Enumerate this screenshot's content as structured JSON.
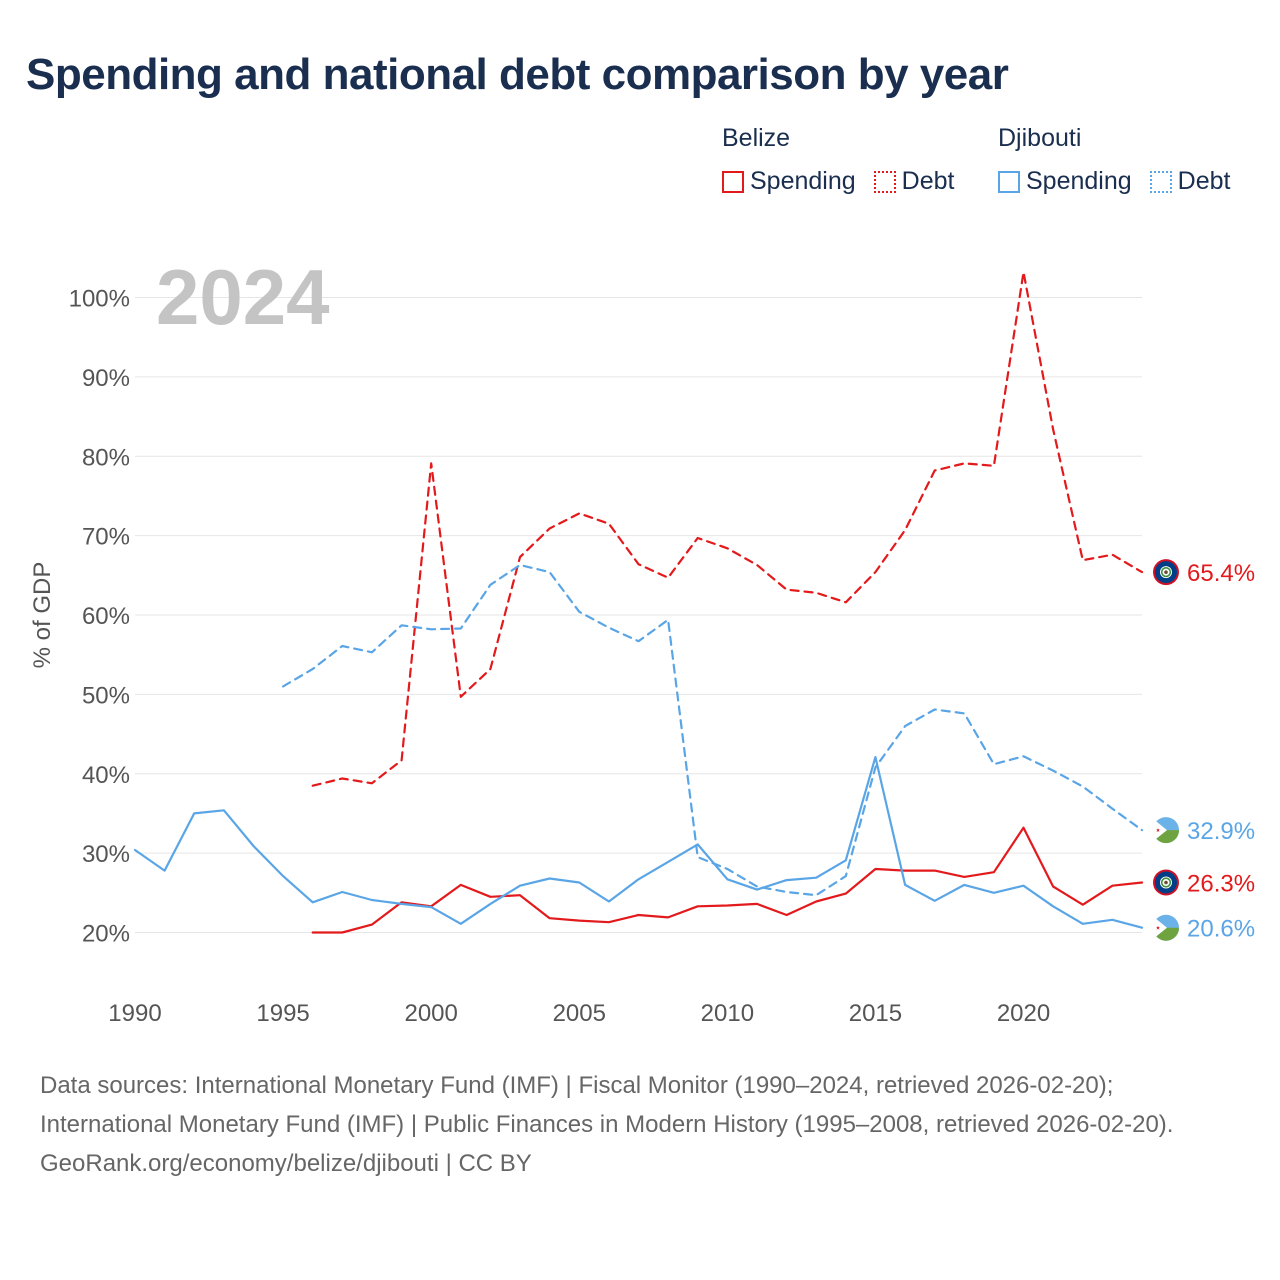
{
  "title": "Spending and national debt comparison by year",
  "legend": {
    "groups": [
      {
        "name": "Belize",
        "color": "#e31a1c",
        "spending_label": "Spending",
        "debt_label": "Debt"
      },
      {
        "name": "Djibouti",
        "color": "#5aa5e6",
        "spending_label": "Spending",
        "debt_label": "Debt"
      }
    ]
  },
  "year_watermark": "2024",
  "chart_data": {
    "type": "line",
    "ylabel": "% of GDP",
    "xlim": [
      1990,
      2024
    ],
    "ylim": [
      15,
      105
    ],
    "x_ticks": [
      1990,
      1995,
      2000,
      2005,
      2010,
      2015,
      2020
    ],
    "y_ticks": [
      20,
      30,
      40,
      50,
      60,
      70,
      80,
      90,
      100
    ],
    "y_tick_labels": [
      "20%",
      "30%",
      "40%",
      "50%",
      "60%",
      "70%",
      "80%",
      "90%",
      "100%"
    ],
    "series": [
      {
        "name": "Belize Debt",
        "country": "Belize",
        "metric": "Debt",
        "color": "#e31a1c",
        "style": "dashed",
        "x": [
          1996,
          1997,
          1998,
          1999,
          2000,
          2001,
          2002,
          2003,
          2004,
          2005,
          2006,
          2007,
          2008,
          2009,
          2010,
          2011,
          2012,
          2013,
          2014,
          2015,
          2016,
          2017,
          2018,
          2019,
          2020,
          2021,
          2022,
          2023,
          2024
        ],
        "values": [
          38.5,
          39.4,
          38.8,
          41.7,
          79.1,
          49.7,
          53.2,
          67.3,
          70.9,
          72.8,
          71.5,
          66.4,
          64.7,
          69.7,
          68.4,
          66.3,
          63.2,
          62.8,
          61.6,
          65.4,
          70.7,
          78.2,
          79.1,
          78.8,
          103.2,
          83.4,
          66.9,
          67.6,
          65.4
        ],
        "end_label": "65.4%"
      },
      {
        "name": "Belize Spending",
        "country": "Belize",
        "metric": "Spending",
        "color": "#e31a1c",
        "style": "solid",
        "x": [
          1996,
          1997,
          1998,
          1999,
          2000,
          2001,
          2002,
          2003,
          2004,
          2005,
          2006,
          2007,
          2008,
          2009,
          2010,
          2011,
          2012,
          2013,
          2014,
          2015,
          2016,
          2017,
          2018,
          2019,
          2020,
          2021,
          2022,
          2023,
          2024
        ],
        "values": [
          20.0,
          20.0,
          21.0,
          23.8,
          23.3,
          26.0,
          24.5,
          24.7,
          21.8,
          21.5,
          21.3,
          22.2,
          21.9,
          23.3,
          23.4,
          23.6,
          22.2,
          23.9,
          24.9,
          28.0,
          27.8,
          27.8,
          27.0,
          27.6,
          33.2,
          25.8,
          23.5,
          25.9,
          26.3
        ],
        "end_label": "26.3%"
      },
      {
        "name": "Djibouti Debt",
        "country": "Djibouti",
        "metric": "Debt",
        "color": "#5aa5e6",
        "style": "dashed",
        "x": [
          1995,
          1996,
          1997,
          1998,
          1999,
          2000,
          2001,
          2002,
          2003,
          2004,
          2005,
          2006,
          2007,
          2008,
          2009,
          2010,
          2011,
          2012,
          2013,
          2014,
          2015,
          2016,
          2017,
          2018,
          2019,
          2020,
          2021,
          2022,
          2023,
          2024
        ],
        "values": [
          51.0,
          53.2,
          56.1,
          55.3,
          58.7,
          58.2,
          58.3,
          63.8,
          66.3,
          65.4,
          60.4,
          58.4,
          56.7,
          59.4,
          29.5,
          28.0,
          25.8,
          25.1,
          24.7,
          27.1,
          40.8,
          46.0,
          48.1,
          47.6,
          41.2,
          42.2,
          40.4,
          38.4,
          35.6,
          32.9
        ],
        "end_label": "32.9%"
      },
      {
        "name": "Djibouti Spending",
        "country": "Djibouti",
        "metric": "Spending",
        "color": "#5aa5e6",
        "style": "solid",
        "x": [
          1990,
          1991,
          1992,
          1993,
          1994,
          1995,
          1996,
          1997,
          1998,
          1999,
          2000,
          2001,
          2002,
          2003,
          2004,
          2005,
          2006,
          2007,
          2008,
          2009,
          2010,
          2011,
          2012,
          2013,
          2014,
          2015,
          2016,
          2017,
          2018,
          2019,
          2020,
          2021,
          2022,
          2023,
          2024
        ],
        "values": [
          30.4,
          27.8,
          35.0,
          35.4,
          30.9,
          27.1,
          23.8,
          25.1,
          24.1,
          23.6,
          23.2,
          21.1,
          23.6,
          25.9,
          26.8,
          26.3,
          23.9,
          26.7,
          28.9,
          31.1,
          26.7,
          25.4,
          26.6,
          26.9,
          29.1,
          42.1,
          26.0,
          24.0,
          26.0,
          25.0,
          25.9,
          23.3,
          21.1,
          21.6,
          20.6
        ],
        "end_label": "20.6%"
      }
    ]
  },
  "footer": {
    "sources": "Data sources: International Monetary Fund (IMF) | Fiscal Monitor (1990–2024, retrieved 2026-02-20); International Monetary Fund (IMF) | Public Finances in Modern History (1995–2008, retrieved 2026-02-20).",
    "credit": "GeoRank.org/economy/belize/djibouti | CC BY"
  }
}
